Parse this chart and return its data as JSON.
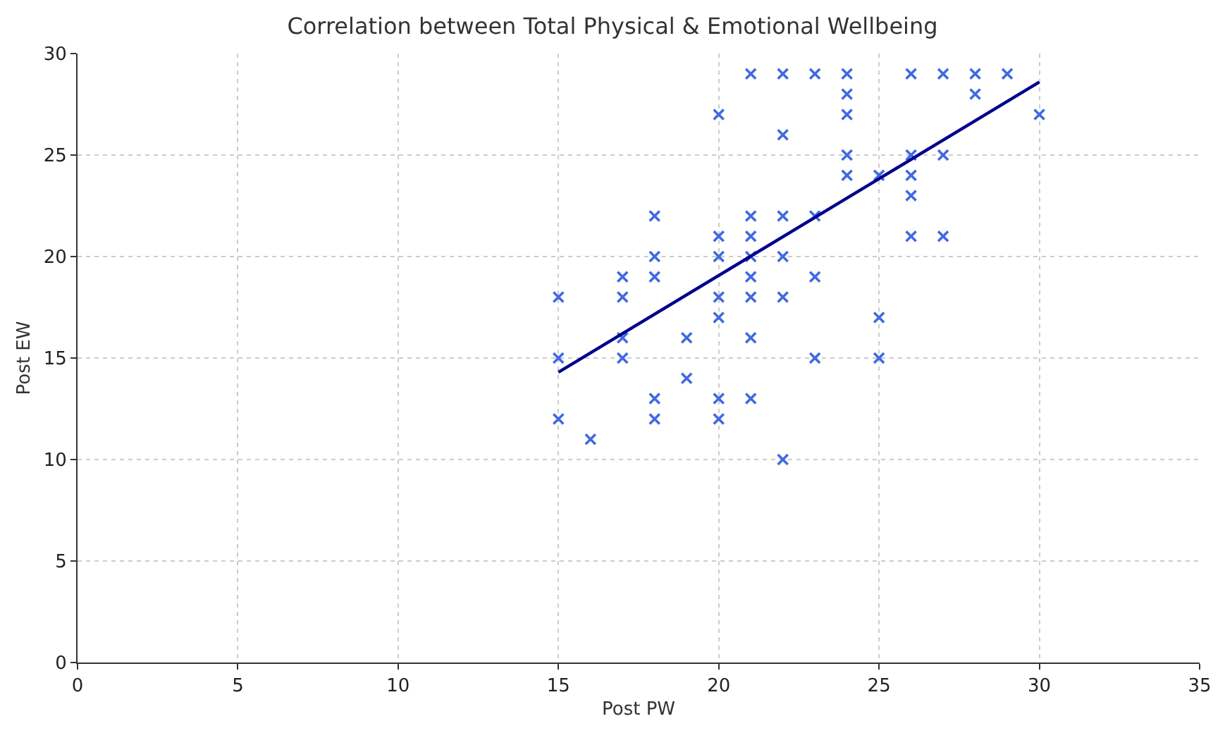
{
  "chart_data": {
    "type": "scatter",
    "title": "Correlation between Total Physical & Emotional Wellbeing",
    "xlabel": "Post PW",
    "ylabel": "Post EW",
    "series": [
      {
        "color": "#4169e1",
        "marker": "cross",
        "x": [
          15,
          15,
          15,
          16,
          17,
          17,
          17,
          17,
          18,
          18,
          18,
          18,
          18,
          19,
          19,
          20,
          20,
          20,
          20,
          20,
          20,
          20,
          21,
          21,
          21,
          21,
          21,
          21,
          21,
          21,
          22,
          22,
          22,
          22,
          22,
          22,
          23,
          23,
          23,
          23,
          24,
          24,
          24,
          24,
          24,
          25,
          25,
          25,
          26,
          26,
          26,
          26,
          26,
          27,
          27,
          27,
          28,
          28,
          29,
          30
        ],
        "values": [
          18,
          15,
          12,
          11,
          19,
          18,
          16,
          15,
          22,
          20,
          19,
          13,
          12,
          16,
          14,
          27,
          21,
          20,
          18,
          17,
          13,
          12,
          29,
          22,
          21,
          20,
          19,
          18,
          16,
          13,
          29,
          26,
          22,
          20,
          18,
          10,
          29,
          22,
          19,
          15,
          29,
          28,
          27,
          25,
          24,
          24,
          17,
          15,
          29,
          25,
          24,
          23,
          21,
          29,
          25,
          21,
          29,
          28,
          29,
          27
        ]
      },
      {
        "type": "line",
        "color": "#00008b",
        "x": [
          15,
          30
        ],
        "values": [
          14.3,
          28.6
        ]
      }
    ],
    "xlim": [
      0,
      35
    ],
    "xticks": [
      0,
      5,
      10,
      15,
      20,
      25,
      30,
      35
    ],
    "ylim": [
      0,
      30
    ],
    "yticks": [
      0,
      5,
      10,
      15,
      20,
      25,
      30
    ],
    "grid": true
  }
}
